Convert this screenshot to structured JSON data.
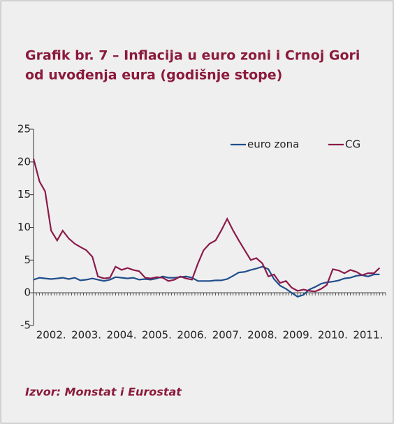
{
  "header": {
    "title_lines": [
      "Grafik br. 7 – Inflacija u euro zoni i Crnoj Gori",
      "od uvođenja eura (godišnje stope)"
    ]
  },
  "chart_data": {
    "type": "line",
    "x": [
      2002,
      2002.17,
      2002.33,
      2002.5,
      2002.67,
      2002.83,
      2003,
      2003.17,
      2003.33,
      2003.5,
      2003.67,
      2003.83,
      2004,
      2004.17,
      2004.33,
      2004.5,
      2004.67,
      2004.83,
      2005,
      2005.17,
      2005.33,
      2005.5,
      2005.67,
      2005.83,
      2006,
      2006.17,
      2006.33,
      2006.5,
      2006.67,
      2006.83,
      2007,
      2007.17,
      2007.33,
      2007.5,
      2007.67,
      2007.83,
      2008,
      2008.17,
      2008.33,
      2008.5,
      2008.67,
      2008.83,
      2009,
      2009.17,
      2009.33,
      2009.5,
      2009.67,
      2009.83,
      2010,
      2010.17,
      2010.33,
      2010.5,
      2010.67,
      2010.83,
      2011,
      2011.17,
      2011.33,
      2011.5,
      2011.67,
      2011.83
    ],
    "series": [
      {
        "name": "euro zona",
        "color": "#1f4e8c",
        "values": [
          2.0,
          2.3,
          2.2,
          2.1,
          2.2,
          2.3,
          2.1,
          2.3,
          1.9,
          2.0,
          2.2,
          2.0,
          1.8,
          2.0,
          2.4,
          2.3,
          2.2,
          2.3,
          2.0,
          2.1,
          2.0,
          2.2,
          2.5,
          2.3,
          2.3,
          2.4,
          2.5,
          2.3,
          1.8,
          1.8,
          1.8,
          1.9,
          1.9,
          2.1,
          2.6,
          3.1,
          3.2,
          3.5,
          3.7,
          4.0,
          3.6,
          2.1,
          1.1,
          0.6,
          0.0,
          -0.6,
          -0.3,
          0.5,
          0.9,
          1.4,
          1.6,
          1.7,
          1.9,
          2.2,
          2.3,
          2.6,
          2.7,
          2.5,
          2.8,
          2.8
        ]
      },
      {
        "name": "CG",
        "color": "#8b1a4a",
        "values": [
          20.5,
          17,
          15.5,
          9.5,
          8,
          9.5,
          8.3,
          7.5,
          7,
          6.5,
          5.5,
          2.5,
          2.2,
          2.3,
          4,
          3.5,
          3.8,
          3.5,
          3.3,
          2.3,
          2.2,
          2.4,
          2.3,
          1.8,
          2.0,
          2.5,
          2.2,
          2.0,
          4.5,
          6.5,
          7.5,
          8,
          9.5,
          11.3,
          9.5,
          8,
          6.5,
          5,
          5.3,
          4.5,
          2.5,
          2.8,
          1.5,
          1.8,
          0.8,
          0.3,
          0.5,
          0.3,
          0.2,
          0.6,
          1.2,
          3.6,
          3.4,
          3.0,
          3.5,
          3.2,
          2.7,
          3.0,
          3.0,
          3.8
        ]
      }
    ],
    "xlim": [
      2002,
      2012
    ],
    "xticks": [
      {
        "value": 2002.5,
        "label": "2002."
      },
      {
        "value": 2003.5,
        "label": "2003."
      },
      {
        "value": 2004.5,
        "label": "2004."
      },
      {
        "value": 2005.5,
        "label": "2005."
      },
      {
        "value": 2006.5,
        "label": "2006."
      },
      {
        "value": 2007.5,
        "label": "2007."
      },
      {
        "value": 2008.5,
        "label": "2008."
      },
      {
        "value": 2009.5,
        "label": "2009."
      },
      {
        "value": 2010.5,
        "label": "2010."
      },
      {
        "value": 2011.5,
        "label": "2011."
      }
    ],
    "ylim": [
      -5,
      25
    ],
    "yticks": [
      -5,
      0,
      5,
      10,
      15,
      20,
      25
    ],
    "legend": "upper right"
  },
  "footer": {
    "source": "Izvor: Monstat i Eurostat"
  }
}
